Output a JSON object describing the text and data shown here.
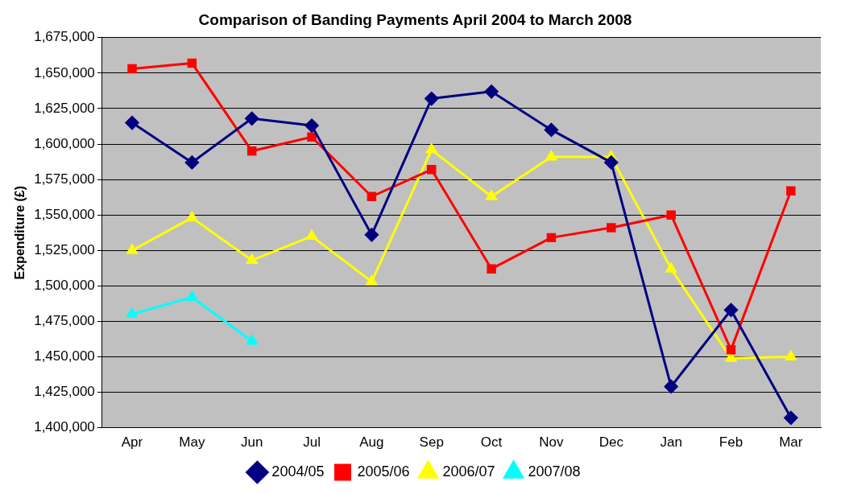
{
  "chart_data": {
    "type": "line",
    "title": "Comparison of Banding Payments April 2004 to March 2008",
    "ylabel": "Expenditure (£)",
    "categories": [
      "Apr",
      "May",
      "Jun",
      "Jul",
      "Aug",
      "Sep",
      "Oct",
      "Nov",
      "Dec",
      "Jan",
      "Feb",
      "Mar"
    ],
    "series": [
      {
        "name": "2004/05",
        "color": "#000080",
        "marker": "diamond",
        "values": [
          1615000,
          1587000,
          1618000,
          1613000,
          1536000,
          1632000,
          1637000,
          1610000,
          1587000,
          1429000,
          1483000,
          1407000
        ]
      },
      {
        "name": "2005/06",
        "color": "#ff0000",
        "marker": "square",
        "values": [
          1653000,
          1657000,
          1595000,
          1605000,
          1563000,
          1582000,
          1512000,
          1534000,
          1541000,
          1550000,
          1455000,
          1567000
        ]
      },
      {
        "name": "2006/07",
        "color": "#ffff00",
        "marker": "triangle",
        "values": [
          1525000,
          1548000,
          1518000,
          1535000,
          1503000,
          1596000,
          1563000,
          1591000,
          1591000,
          1512000,
          1449000,
          1450000
        ]
      },
      {
        "name": "2007/08",
        "color": "#00ffff",
        "marker": "triangle",
        "values": [
          1480000,
          1492000,
          1461000,
          null,
          null,
          null,
          null,
          null,
          null,
          null,
          null,
          null
        ]
      }
    ],
    "ylim": [
      1400000,
      1675000
    ],
    "yticks": [
      {
        "value": 1400000,
        "label": "1,400,000"
      },
      {
        "value": 1425000,
        "label": "1,425,000"
      },
      {
        "value": 1450000,
        "label": "1,450,000"
      },
      {
        "value": 1475000,
        "label": "1,475,000"
      },
      {
        "value": 1500000,
        "label": "1,500,000"
      },
      {
        "value": 1525000,
        "label": "1,525,000"
      },
      {
        "value": 1550000,
        "label": "1,550,000"
      },
      {
        "value": 1575000,
        "label": "1,575,000"
      },
      {
        "value": 1600000,
        "label": "1,600,000"
      },
      {
        "value": 1625000,
        "label": "1,625,000"
      },
      {
        "value": 1650000,
        "label": "1,650,000"
      },
      {
        "value": 1675000,
        "label": "1,675,000"
      }
    ],
    "grid": "y",
    "legend": "bottom",
    "line_style": "solid"
  }
}
